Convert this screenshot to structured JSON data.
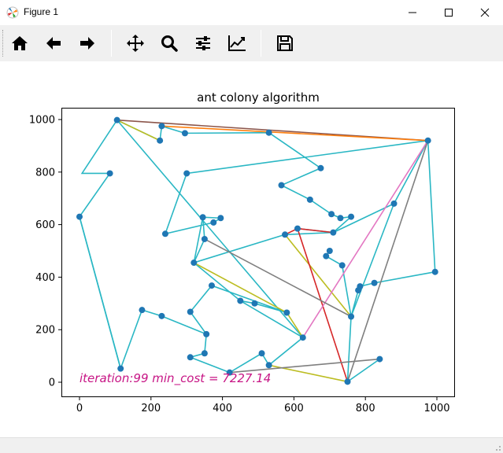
{
  "window": {
    "title": "Figure 1",
    "app_icon": "matplotlib-figure-icon",
    "controls": [
      "minimize-icon",
      "maximize-icon",
      "close-icon"
    ]
  },
  "toolbar": {
    "buttons": [
      {
        "name": "home-button",
        "icon": "home-icon"
      },
      {
        "name": "back-button",
        "icon": "left-arrow-icon"
      },
      {
        "name": "forward-button",
        "icon": "right-arrow-icon"
      },
      {
        "name": "pan-button",
        "icon": "move-icon"
      },
      {
        "name": "zoom-button",
        "icon": "magnifier-icon"
      },
      {
        "name": "configure-subplots-button",
        "icon": "sliders-icon"
      },
      {
        "name": "edit-axis-button",
        "icon": "line-chart-icon"
      },
      {
        "name": "save-button",
        "icon": "floppy-disk-icon"
      }
    ]
  },
  "chart_data": {
    "type": "line",
    "title": "ant colony algorithm",
    "xlabel": "",
    "ylabel": "",
    "xlim": [
      -50,
      1050
    ],
    "ylim": [
      -50,
      1050
    ],
    "xticks": [
      0,
      200,
      400,
      600,
      800,
      1000
    ],
    "yticks": [
      0,
      200,
      400,
      600,
      800,
      1000
    ],
    "grid": false,
    "annotation": {
      "text": "iteration:99 min_cost = 7227.14",
      "x": 0,
      "y": 0,
      "color": "#c71585"
    },
    "points": [
      [
        105,
        998
      ],
      [
        230,
        975
      ],
      [
        295,
        948
      ],
      [
        530,
        950
      ],
      [
        975,
        920
      ],
      [
        225,
        920
      ],
      [
        300,
        795
      ],
      [
        85,
        795
      ],
      [
        675,
        815
      ],
      [
        565,
        750
      ],
      [
        645,
        695
      ],
      [
        880,
        680
      ],
      [
        705,
        640
      ],
      [
        730,
        625
      ],
      [
        760,
        630
      ],
      [
        0,
        630
      ],
      [
        345,
        628
      ],
      [
        395,
        625
      ],
      [
        375,
        608
      ],
      [
        240,
        565
      ],
      [
        575,
        562
      ],
      [
        610,
        585
      ],
      [
        710,
        570
      ],
      [
        350,
        545
      ],
      [
        700,
        500
      ],
      [
        690,
        480
      ],
      [
        735,
        445
      ],
      [
        320,
        455
      ],
      [
        995,
        420
      ],
      [
        370,
        368
      ],
      [
        785,
        365
      ],
      [
        825,
        378
      ],
      [
        780,
        350
      ],
      [
        450,
        310
      ],
      [
        490,
        300
      ],
      [
        580,
        265
      ],
      [
        175,
        275
      ],
      [
        230,
        252
      ],
      [
        760,
        250
      ],
      [
        310,
        268
      ],
      [
        355,
        183
      ],
      [
        625,
        170
      ],
      [
        350,
        110
      ],
      [
        510,
        110
      ],
      [
        310,
        95
      ],
      [
        840,
        88
      ],
      [
        115,
        52
      ],
      [
        530,
        65
      ],
      [
        420,
        37
      ],
      [
        750,
        2
      ]
    ],
    "series": [
      {
        "color": "#2ab7c4",
        "path": [
          [
            105,
            998
          ],
          [
            7,
            795
          ],
          [
            85,
            795
          ],
          [
            0,
            630
          ],
          [
            115,
            52
          ],
          [
            175,
            275
          ],
          [
            230,
            252
          ],
          [
            355,
            183
          ],
          [
            350,
            110
          ],
          [
            310,
            95
          ],
          [
            420,
            37
          ],
          [
            510,
            110
          ],
          [
            530,
            65
          ],
          [
            625,
            170
          ],
          [
            450,
            310
          ],
          [
            490,
            300
          ],
          [
            580,
            265
          ],
          [
            580,
            265
          ],
          [
            370,
            368
          ],
          [
            310,
            268
          ],
          [
            355,
            183
          ]
        ]
      },
      {
        "color": "#2ab7c4",
        "path": [
          [
            320,
            455
          ],
          [
            350,
            545
          ],
          [
            345,
            628
          ],
          [
            395,
            625
          ],
          [
            375,
            608
          ],
          [
            240,
            565
          ],
          [
            300,
            795
          ],
          [
            975,
            920
          ],
          [
            995,
            420
          ],
          [
            825,
            378
          ],
          [
            785,
            365
          ],
          [
            780,
            350
          ],
          [
            760,
            250
          ],
          [
            750,
            2
          ],
          [
            840,
            88
          ]
        ]
      },
      {
        "color": "#2ab7c4",
        "path": [
          [
            575,
            562
          ],
          [
            320,
            455
          ],
          [
            345,
            628
          ]
        ]
      },
      {
        "color": "#2ab7c4",
        "path": [
          [
            575,
            562
          ],
          [
            710,
            570
          ],
          [
            760,
            630
          ],
          [
            730,
            625
          ],
          [
            705,
            640
          ],
          [
            645,
            695
          ],
          [
            565,
            750
          ],
          [
            675,
            815
          ],
          [
            530,
            950
          ],
          [
            295,
            948
          ],
          [
            230,
            975
          ],
          [
            225,
            920
          ],
          [
            105,
            998
          ],
          [
            625,
            170
          ]
        ]
      },
      {
        "color": "#2ab7c4",
        "path": [
          [
            610,
            585
          ],
          [
            710,
            570
          ],
          [
            880,
            680
          ],
          [
            975,
            920
          ]
        ]
      },
      {
        "color": "#2ab7c4",
        "path": [
          [
            700,
            500
          ],
          [
            690,
            480
          ],
          [
            735,
            445
          ],
          [
            760,
            250
          ],
          [
            880,
            680
          ]
        ]
      },
      {
        "color": "#2ab7c4",
        "path": [
          [
            450,
            310
          ],
          [
            320,
            455
          ]
        ]
      },
      {
        "color": "#8c564b",
        "path": [
          [
            105,
            998
          ],
          [
            975,
            920
          ]
        ]
      },
      {
        "color": "#ff7f0e",
        "path": [
          [
            230,
            975
          ],
          [
            975,
            920
          ]
        ]
      },
      {
        "color": "#bcbd22",
        "path": [
          [
            105,
            998
          ],
          [
            225,
            920
          ]
        ]
      },
      {
        "color": "#bcbd22",
        "path": [
          [
            320,
            455
          ],
          [
            580,
            265
          ],
          [
            625,
            170
          ]
        ]
      },
      {
        "color": "#bcbd22",
        "path": [
          [
            575,
            562
          ],
          [
            760,
            250
          ]
        ]
      },
      {
        "color": "#bcbd22",
        "path": [
          [
            530,
            65
          ],
          [
            750,
            2
          ]
        ]
      },
      {
        "color": "#d62728",
        "path": [
          [
            575,
            562
          ],
          [
            610,
            585
          ],
          [
            750,
            2
          ]
        ]
      },
      {
        "color": "#d62728",
        "path": [
          [
            610,
            585
          ],
          [
            710,
            570
          ]
        ]
      },
      {
        "color": "#e377c2",
        "path": [
          [
            625,
            170
          ],
          [
            975,
            920
          ]
        ]
      },
      {
        "color": "#7f7f7f",
        "path": [
          [
            350,
            545
          ],
          [
            760,
            250
          ]
        ]
      },
      {
        "color": "#7f7f7f",
        "path": [
          [
            420,
            37
          ],
          [
            840,
            88
          ]
        ]
      },
      {
        "color": "#7f7f7f",
        "path": [
          [
            750,
            2
          ],
          [
            975,
            920
          ]
        ]
      },
      {
        "color": "#2ab7c4",
        "path": [
          [
            0,
            630
          ],
          [
            115,
            52
          ]
        ]
      }
    ]
  }
}
